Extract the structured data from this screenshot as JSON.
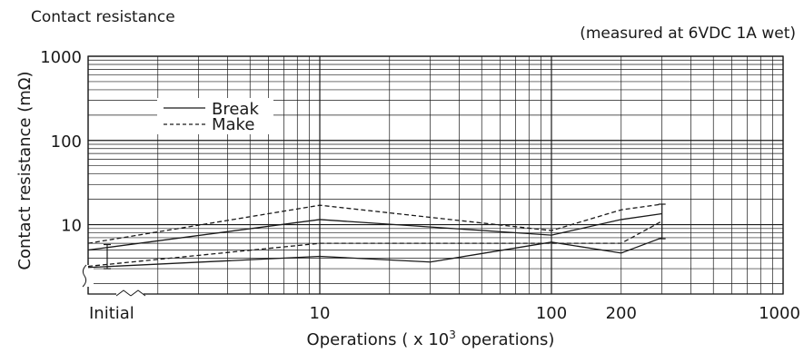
{
  "chart_data": {
    "type": "line",
    "title": "Contact resistance",
    "note": "(measured at 6VDC 1A wet)",
    "xlabel": "Operations ( x 10",
    "xlabel_exp": "3",
    "xlabel_suffix": " operations)",
    "ylabel": "Contact resistance (mΩ)",
    "x_scale": "log",
    "y_scale": "log",
    "xlim": [
      1,
      1000
    ],
    "ylim": [
      1.5,
      1000
    ],
    "grid": true,
    "legend_position": "top-left",
    "x_tick_labels": [
      {
        "label": "Initial",
        "value": 1
      },
      {
        "label": "10",
        "value": 10
      },
      {
        "label": "100",
        "value": 100
      },
      {
        "label": "200",
        "value": 200
      },
      {
        "label": "1000",
        "value": 1000
      }
    ],
    "y_tick_labels": [
      {
        "label": "1000",
        "value": 1000
      },
      {
        "label": "100",
        "value": 100
      },
      {
        "label": "10",
        "value": 10
      }
    ],
    "series": [
      {
        "name": "Break",
        "style": "solid",
        "max": {
          "x": [
            1,
            10,
            100,
            200,
            300
          ],
          "y": [
            5.0,
            11.5,
            7.5,
            11.5,
            13.5
          ]
        },
        "min": {
          "x": [
            1,
            10,
            30,
            100,
            200,
            300
          ],
          "y": [
            3.1,
            4.2,
            3.6,
            6.2,
            4.6,
            7.0
          ]
        }
      },
      {
        "name": "Make",
        "style": "dashed",
        "max": {
          "x": [
            1,
            10,
            100,
            200,
            300
          ],
          "y": [
            6.0,
            17.0,
            8.5,
            15.0,
            17.5
          ]
        },
        "min": {
          "x": [
            1,
            10,
            100,
            200,
            300
          ],
          "y": [
            3.2,
            6.0,
            6.0,
            6.0,
            11.0
          ]
        }
      }
    ],
    "error_bars": [
      {
        "x": 1,
        "low": 3.0,
        "high": 5.8
      },
      {
        "x": 300,
        "low": 6.8,
        "high": 17.5
      }
    ]
  }
}
